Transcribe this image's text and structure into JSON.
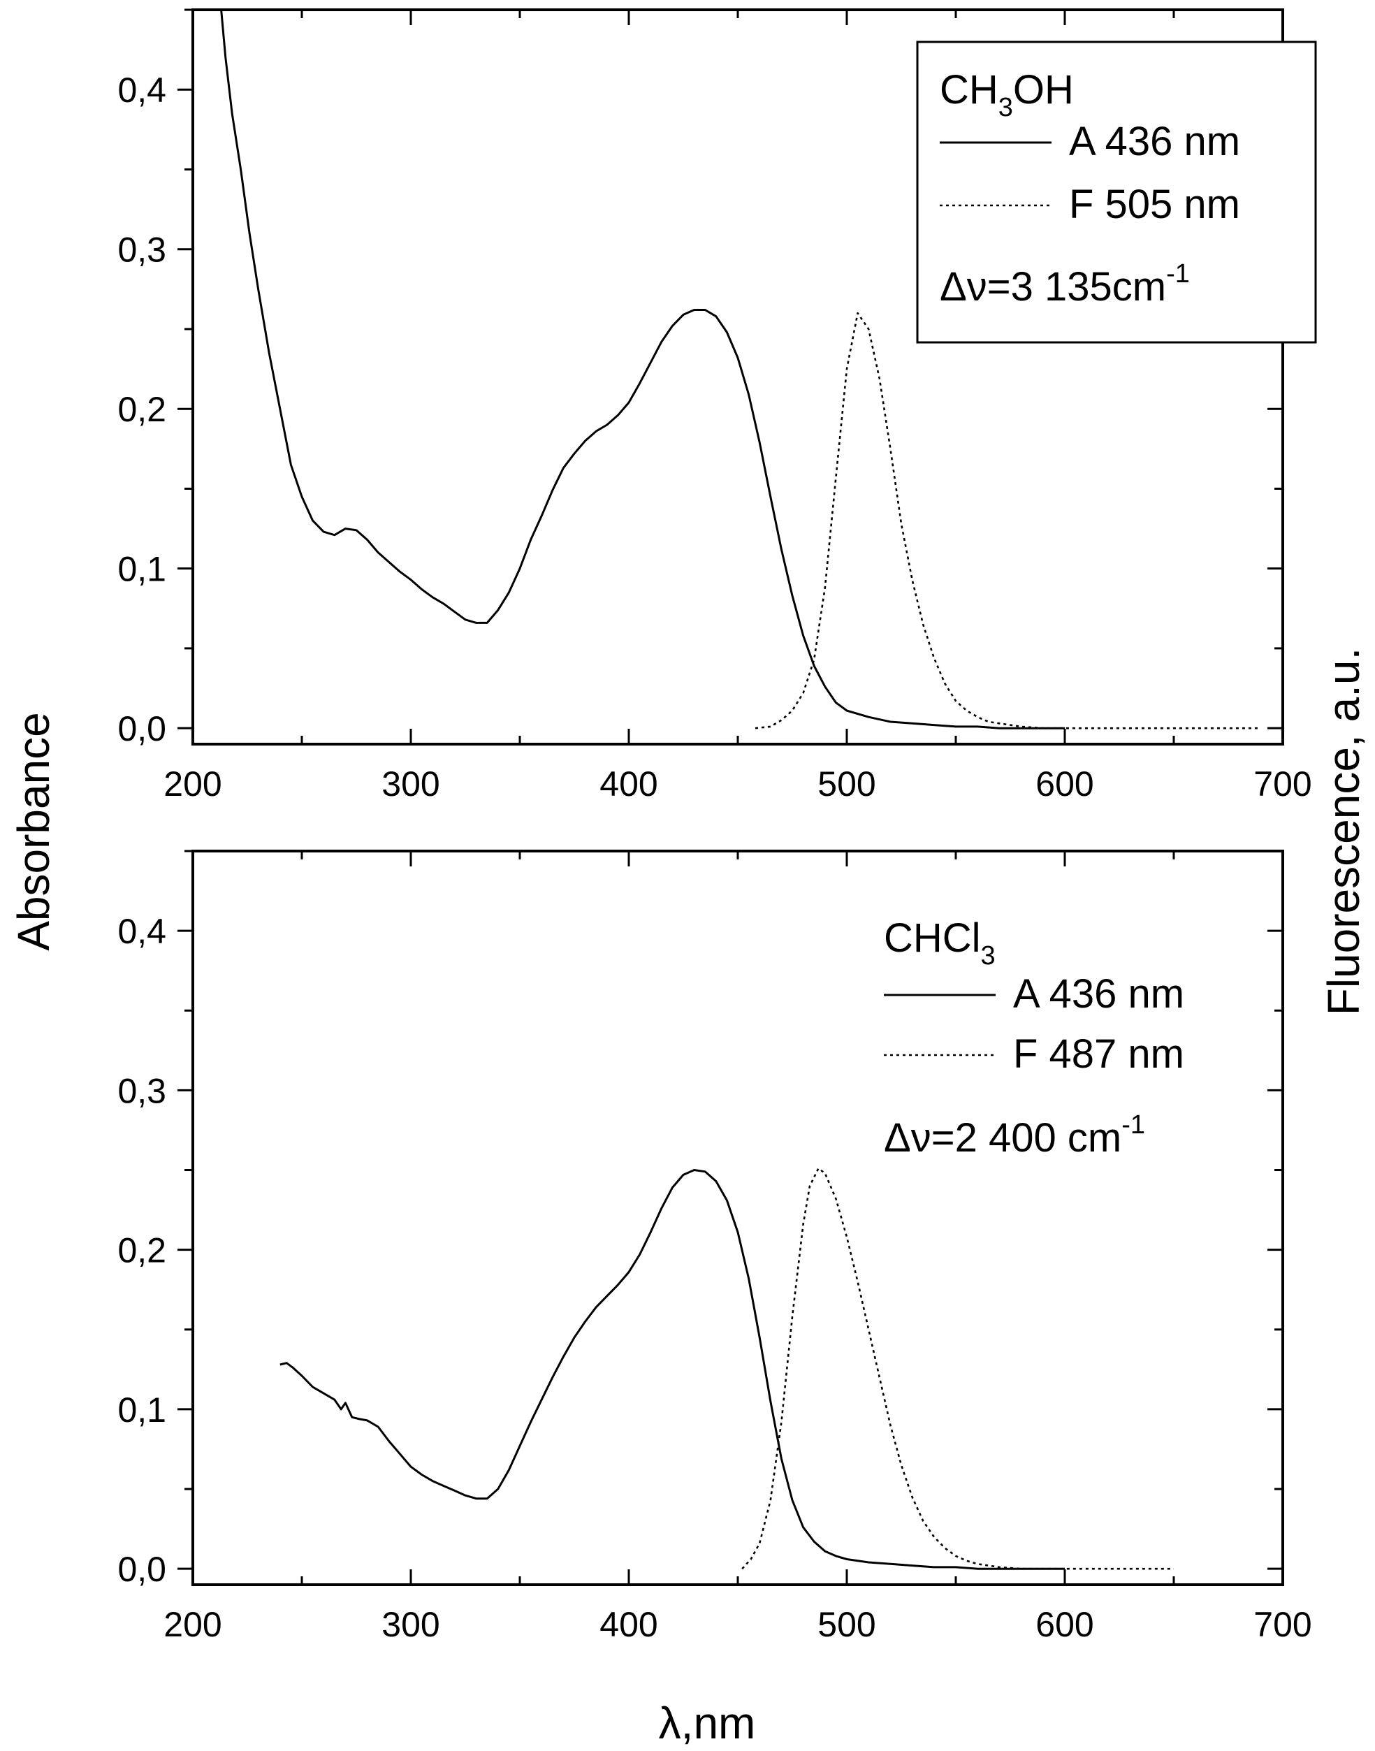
{
  "figure": {
    "ylabel_left": "Absorbance",
    "ylabel_right": "Fluorescence, a.u.",
    "xlabel": "λ,nm"
  },
  "chart_data": [
    {
      "type": "line",
      "xlim": [
        200,
        700
      ],
      "ylim": [
        -0.01,
        0.45
      ],
      "x_ticks": [
        200,
        300,
        400,
        500,
        600,
        700
      ],
      "x_tick_labels": [
        "200",
        "300",
        "400",
        "500",
        "600",
        "700"
      ],
      "y_ticks": [
        0.0,
        0.1,
        0.2,
        0.3,
        0.4
      ],
      "y_tick_labels": [
        "0,0",
        "0,1",
        "0,2",
        "0,3",
        "0,4"
      ],
      "legend": {
        "placement": "top-right",
        "boxed": true,
        "solvent_main": "CH",
        "solvent_sub": "3",
        "solvent_tail": "OH",
        "entries": [
          "A 436 nm",
          "F 505 nm"
        ],
        "delta_main": "Δν=3 135cm",
        "delta_sup": "-1"
      },
      "series": [
        {
          "style": "solid",
          "x": [
            213,
            215,
            218,
            222,
            226,
            230,
            235,
            240,
            245,
            250,
            255,
            260,
            265,
            270,
            275,
            280,
            285,
            290,
            295,
            300,
            305,
            310,
            315,
            320,
            325,
            330,
            335,
            340,
            345,
            350,
            355,
            360,
            365,
            370,
            375,
            380,
            385,
            390,
            395,
            400,
            405,
            410,
            415,
            420,
            425,
            430,
            435,
            440,
            445,
            450,
            455,
            460,
            465,
            470,
            475,
            480,
            485,
            490,
            495,
            500,
            510,
            520,
            530,
            540,
            550,
            560,
            570,
            580,
            590,
            600
          ],
          "y": [
            0.45,
            0.42,
            0.385,
            0.35,
            0.31,
            0.275,
            0.235,
            0.2,
            0.165,
            0.145,
            0.13,
            0.123,
            0.121,
            0.125,
            0.124,
            0.118,
            0.11,
            0.104,
            0.098,
            0.093,
            0.087,
            0.082,
            0.078,
            0.073,
            0.068,
            0.066,
            0.066,
            0.074,
            0.085,
            0.1,
            0.118,
            0.133,
            0.149,
            0.163,
            0.172,
            0.18,
            0.186,
            0.19,
            0.196,
            0.204,
            0.216,
            0.229,
            0.242,
            0.252,
            0.259,
            0.262,
            0.262,
            0.258,
            0.248,
            0.232,
            0.209,
            0.179,
            0.145,
            0.112,
            0.083,
            0.058,
            0.039,
            0.026,
            0.016,
            0.011,
            0.007,
            0.004,
            0.003,
            0.002,
            0.001,
            0.001,
            0.0,
            0.0,
            0.0,
            0.0
          ]
        },
        {
          "style": "dotted",
          "x": [
            458,
            465,
            470,
            475,
            480,
            485,
            490,
            495,
            500,
            505,
            510,
            515,
            520,
            525,
            530,
            535,
            540,
            545,
            550,
            555,
            560,
            565,
            570,
            580,
            590,
            600,
            620,
            650,
            690
          ],
          "y": [
            0.0,
            0.001,
            0.005,
            0.011,
            0.022,
            0.043,
            0.088,
            0.157,
            0.225,
            0.26,
            0.25,
            0.219,
            0.175,
            0.128,
            0.093,
            0.065,
            0.044,
            0.028,
            0.017,
            0.011,
            0.007,
            0.004,
            0.003,
            0.001,
            0.0,
            0.0,
            0.0,
            0.0,
            0.0
          ]
        }
      ]
    },
    {
      "type": "line",
      "xlim": [
        200,
        700
      ],
      "ylim": [
        -0.01,
        0.45
      ],
      "x_ticks": [
        200,
        300,
        400,
        500,
        600,
        700
      ],
      "x_tick_labels": [
        "200",
        "300",
        "400",
        "500",
        "600",
        "700"
      ],
      "y_ticks": [
        0.0,
        0.1,
        0.2,
        0.3,
        0.4
      ],
      "y_tick_labels": [
        "0,0",
        "0,1",
        "0,2",
        "0,3",
        "0,4"
      ],
      "legend": {
        "placement": "top-right",
        "boxed": false,
        "solvent_main": "CHCl",
        "solvent_sub": "3",
        "solvent_tail": "",
        "entries": [
          "A 436 nm",
          "F 487 nm"
        ],
        "delta_main": "Δν=2 400 cm",
        "delta_sup": "-1"
      },
      "series": [
        {
          "style": "solid",
          "x": [
            240,
            243,
            246,
            250,
            255,
            260,
            265,
            268,
            270,
            273,
            276,
            280,
            285,
            290,
            295,
            300,
            305,
            310,
            315,
            320,
            325,
            330,
            335,
            340,
            345,
            350,
            355,
            360,
            365,
            370,
            375,
            380,
            385,
            390,
            395,
            400,
            405,
            410,
            415,
            420,
            425,
            430,
            435,
            440,
            445,
            450,
            455,
            460,
            465,
            470,
            475,
            480,
            485,
            490,
            495,
            500,
            510,
            520,
            530,
            540,
            550,
            560,
            570,
            580,
            590,
            600
          ],
          "y": [
            0.128,
            0.129,
            0.126,
            0.121,
            0.114,
            0.11,
            0.106,
            0.1,
            0.104,
            0.095,
            0.094,
            0.093,
            0.089,
            0.08,
            0.072,
            0.064,
            0.059,
            0.055,
            0.052,
            0.049,
            0.046,
            0.044,
            0.044,
            0.05,
            0.062,
            0.077,
            0.092,
            0.106,
            0.12,
            0.133,
            0.145,
            0.155,
            0.164,
            0.171,
            0.178,
            0.186,
            0.197,
            0.211,
            0.226,
            0.239,
            0.247,
            0.25,
            0.249,
            0.243,
            0.231,
            0.211,
            0.182,
            0.145,
            0.105,
            0.069,
            0.043,
            0.026,
            0.017,
            0.011,
            0.008,
            0.006,
            0.004,
            0.003,
            0.002,
            0.001,
            0.001,
            0.0,
            0.0,
            0.0,
            0.0,
            0.0
          ]
        },
        {
          "style": "dotted",
          "x": [
            452,
            456,
            460,
            465,
            470,
            475,
            480,
            483,
            487,
            490,
            495,
            500,
            505,
            510,
            515,
            520,
            525,
            530,
            535,
            540,
            545,
            550,
            555,
            560,
            570,
            580,
            600,
            620,
            650
          ],
          "y": [
            0.0,
            0.006,
            0.016,
            0.043,
            0.092,
            0.158,
            0.216,
            0.24,
            0.251,
            0.248,
            0.232,
            0.208,
            0.18,
            0.15,
            0.12,
            0.09,
            0.065,
            0.045,
            0.03,
            0.02,
            0.013,
            0.008,
            0.005,
            0.003,
            0.001,
            0.0,
            0.0,
            0.0,
            0.0
          ]
        }
      ]
    }
  ]
}
